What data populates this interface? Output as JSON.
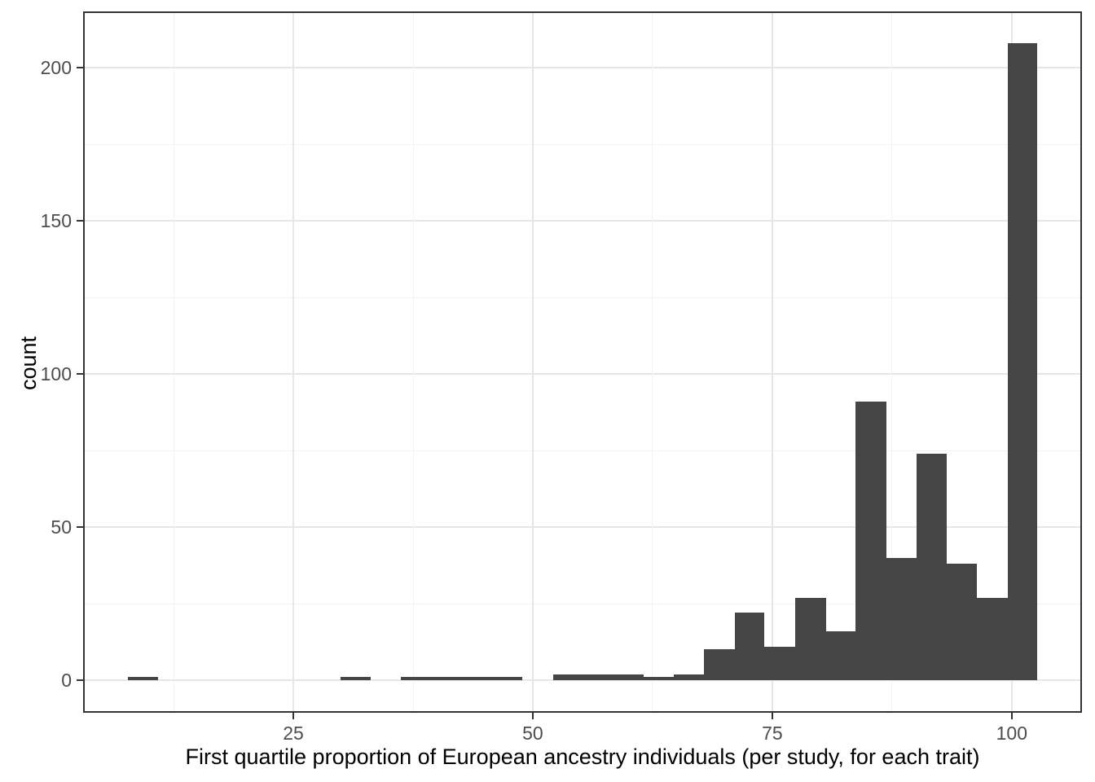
{
  "figure": {
    "background": "#ffffff"
  },
  "chart_data": {
    "type": "histogram",
    "title": "",
    "xlabel": "First quartile proportion of European ancestry individuals (per study, for each trait)",
    "ylabel": "count",
    "bin_edges": [
      7.7,
      10.9,
      14.1,
      17.2,
      20.4,
      23.6,
      26.7,
      29.9,
      33.1,
      36.2,
      39.4,
      42.6,
      45.7,
      48.9,
      52.1,
      55.2,
      58.4,
      61.6,
      64.7,
      67.9,
      71.1,
      74.2,
      77.4,
      80.6,
      83.7,
      86.9,
      90.1,
      93.2,
      96.4,
      99.6,
      102.7
    ],
    "counts": [
      1,
      0,
      0,
      0,
      0,
      0,
      0,
      1,
      0,
      1,
      1,
      1,
      1,
      0,
      2,
      2,
      2,
      1,
      2,
      10,
      22,
      11,
      27,
      16,
      91,
      40,
      74,
      38,
      27,
      208
    ],
    "x_ticks": [
      25,
      50,
      75,
      100
    ],
    "y_ticks": [
      0,
      50,
      100,
      150,
      200
    ],
    "xlim": [
      3.1,
      107.3
    ],
    "ylim": [
      -10.6,
      218.5
    ],
    "grid": "major and minor gridlines, light gray on white",
    "legend": "none",
    "colors": {
      "bar_fill": "#454545",
      "grid_major": "#e6e6e6",
      "grid_minor": "#f2f2f2",
      "panel_border": "#333333",
      "tick_mark": "#333333",
      "tick_label": "#4d4d4d",
      "axis_title": "#000000",
      "background": "#ffffff"
    }
  }
}
